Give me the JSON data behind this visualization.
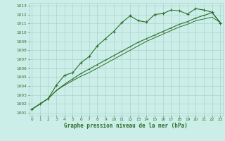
{
  "title": "Graphe pression niveau de la mer (hPa)",
  "bg_color": "#cceee8",
  "grid_color": "#aad4cc",
  "line_color": "#2d6e2d",
  "xlim": [
    0,
    23
  ],
  "ylim": [
    1001,
    1013
  ],
  "xticks": [
    0,
    1,
    2,
    3,
    4,
    5,
    6,
    7,
    8,
    9,
    10,
    11,
    12,
    13,
    14,
    15,
    16,
    17,
    18,
    19,
    20,
    21,
    22,
    23
  ],
  "yticks": [
    1001,
    1002,
    1003,
    1004,
    1005,
    1006,
    1007,
    1008,
    1009,
    1010,
    1011,
    1012,
    1013
  ],
  "series1": [
    1001.4,
    1002.0,
    1002.6,
    1004.1,
    1005.2,
    1005.5,
    1006.6,
    1007.3,
    1008.5,
    1009.3,
    1010.1,
    1011.1,
    1011.85,
    1011.3,
    1011.15,
    1012.0,
    1012.1,
    1012.5,
    1012.4,
    1012.05,
    1012.65,
    1012.5,
    1012.25,
    1011.05
  ],
  "series2": [
    1001.4,
    1002.0,
    1002.6,
    1003.5,
    1004.2,
    1004.8,
    1005.4,
    1005.9,
    1006.4,
    1006.9,
    1007.4,
    1007.9,
    1008.4,
    1008.9,
    1009.3,
    1009.7,
    1010.1,
    1010.5,
    1010.9,
    1011.2,
    1011.6,
    1011.9,
    1012.2,
    1011.1
  ],
  "series3": [
    1001.4,
    1002.0,
    1002.6,
    1003.5,
    1004.1,
    1004.6,
    1005.1,
    1005.5,
    1006.0,
    1006.5,
    1007.0,
    1007.5,
    1008.0,
    1008.5,
    1009.0,
    1009.4,
    1009.8,
    1010.2,
    1010.6,
    1010.9,
    1011.3,
    1011.5,
    1011.7,
    1011.1
  ]
}
